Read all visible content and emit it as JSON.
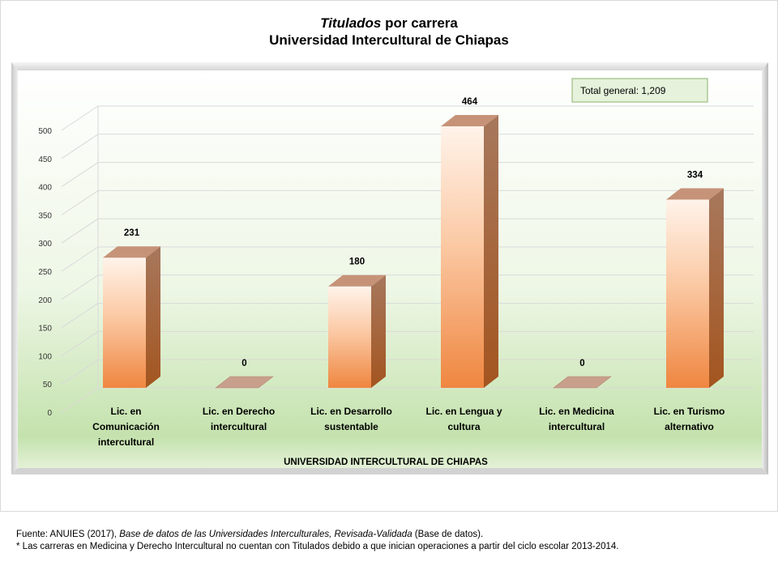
{
  "title": {
    "line1_italic": "Titulados",
    "line1_rest": " por carrera",
    "line2": "Universidad Intercultural de Chiapas"
  },
  "total_box": {
    "label": "Total  general:",
    "value": "1,209"
  },
  "footer": {
    "line1_prefix": "Fuente: ANUIES (2017), ",
    "line1_italic": "Base de datos de las Universidades  Interculturales, Revisada-Validada",
    "line1_suffix": "  (Base de datos).",
    "line2": "* Las carreras en Medicina  y Derecho   Intercultural  no cuentan con Titulados debido  a que inician operaciones  a partir del ciclo escolar 2013-2014."
  },
  "colors": {
    "bar_front_light": "#fff1e8",
    "bar_front_dark": "#f08a45",
    "bar_side": "#b4662f",
    "bar_top": "#c99477",
    "bg_top": "#ffffff",
    "bg_bottom": "#c6e3b0",
    "total_box_bg": "#e6f2db",
    "total_box_border": "#8ab26d"
  },
  "chart_data": {
    "type": "bar",
    "categories": [
      [
        "Lic. en",
        "Comunicación",
        "intercultural"
      ],
      [
        "Lic. en Derecho",
        "intercultural"
      ],
      [
        "Lic. en Desarrollo",
        "sustentable"
      ],
      [
        "Lic. en Lengua y",
        "cultura"
      ],
      [
        "Lic. en Medicina",
        "intercultural"
      ],
      [
        "Lic. en Turismo",
        "alternativo"
      ]
    ],
    "values": [
      231,
      0,
      180,
      464,
      0,
      334
    ],
    "data_labels": [
      "231",
      "0",
      "180",
      "464",
      "0",
      "334"
    ],
    "ylim": [
      0,
      500
    ],
    "yticks": [
      0,
      50,
      100,
      150,
      200,
      250,
      300,
      350,
      400,
      450,
      500
    ],
    "xlabel": "UNIVERSIDAD INTERCULTURAL DE CHIAPAS",
    "ylabel": "",
    "grid": true
  }
}
